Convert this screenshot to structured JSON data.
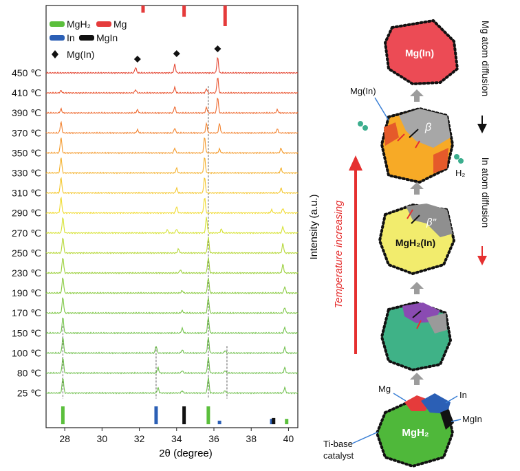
{
  "chart_data": {
    "type": "line",
    "xlabel": "2θ (degree)",
    "ylabel": "Intensity (a.u.)",
    "xlim": [
      27,
      40.5
    ],
    "x_ticks": [
      28,
      30,
      32,
      34,
      36,
      38,
      40
    ],
    "series": [
      {
        "name": "25 ℃",
        "color": "#6fbf4c",
        "peaks": [
          [
            27.9,
            1.0
          ],
          [
            33.0,
            0.35
          ],
          [
            34.3,
            0.15
          ],
          [
            35.7,
            1.0
          ],
          [
            36.6,
            0.15
          ],
          [
            39.8,
            0.35
          ]
        ]
      },
      {
        "name": "80 ℃",
        "color": "#6fbf4c",
        "peaks": [
          [
            27.9,
            1.0
          ],
          [
            33.0,
            0.35
          ],
          [
            34.3,
            0.15
          ],
          [
            35.7,
            1.0
          ],
          [
            36.6,
            0.15
          ],
          [
            39.8,
            0.35
          ]
        ]
      },
      {
        "name": "100 ℃",
        "color": "#6fbf4c",
        "peaks": [
          [
            27.9,
            1.0
          ],
          [
            32.9,
            0.45
          ],
          [
            34.3,
            0.2
          ],
          [
            35.7,
            1.0
          ],
          [
            36.6,
            0.15
          ],
          [
            39.8,
            0.35
          ]
        ]
      },
      {
        "name": "150 ℃",
        "color": "#72c24a",
        "peaks": [
          [
            27.9,
            1.0
          ],
          [
            34.3,
            0.3
          ],
          [
            35.7,
            1.0
          ],
          [
            39.8,
            0.35
          ]
        ]
      },
      {
        "name": "170 ℃",
        "color": "#7dc646",
        "peaks": [
          [
            27.9,
            1.0
          ],
          [
            34.3,
            0.15
          ],
          [
            35.7,
            1.0
          ],
          [
            39.8,
            0.35
          ]
        ]
      },
      {
        "name": "190 ℃",
        "color": "#8acb42",
        "peaks": [
          [
            27.9,
            1.0
          ],
          [
            34.3,
            0.15
          ],
          [
            35.7,
            1.0
          ],
          [
            39.8,
            0.4
          ]
        ]
      },
      {
        "name": "230 ℃",
        "color": "#9bd03c",
        "peaks": [
          [
            27.9,
            1.0
          ],
          [
            34.2,
            0.2
          ],
          [
            35.7,
            1.0
          ],
          [
            39.7,
            0.55
          ]
        ]
      },
      {
        "name": "250 ℃",
        "color": "#b6d838",
        "peaks": [
          [
            27.9,
            1.0
          ],
          [
            34.1,
            0.25
          ],
          [
            35.7,
            1.0
          ],
          [
            39.7,
            0.6
          ]
        ]
      },
      {
        "name": "270 ℃",
        "color": "#d6e233",
        "peaks": [
          [
            27.9,
            1.0
          ],
          [
            33.5,
            0.2
          ],
          [
            34.0,
            0.25
          ],
          [
            35.6,
            1.0
          ],
          [
            36.4,
            0.25
          ],
          [
            39.7,
            0.4
          ]
        ]
      },
      {
        "name": "290 ℃",
        "color": "#f0da2c",
        "peaks": [
          [
            27.8,
            1.0
          ],
          [
            34.0,
            0.4
          ],
          [
            35.5,
            1.0
          ],
          [
            39.1,
            0.2
          ],
          [
            39.7,
            0.3
          ]
        ]
      },
      {
        "name": "310 ℃",
        "color": "#f4c62a",
        "peaks": [
          [
            27.8,
            1.0
          ],
          [
            34.0,
            0.3
          ],
          [
            35.5,
            1.0
          ],
          [
            39.6,
            0.3
          ]
        ]
      },
      {
        "name": "330 ℃",
        "color": "#f4b02a",
        "peaks": [
          [
            27.8,
            1.0
          ],
          [
            34.0,
            0.3
          ],
          [
            35.5,
            1.0
          ],
          [
            39.6,
            0.3
          ]
        ]
      },
      {
        "name": "350 ℃",
        "color": "#f49a2c",
        "peaks": [
          [
            27.8,
            1.0
          ],
          [
            33.9,
            0.3
          ],
          [
            35.5,
            1.0
          ],
          [
            36.3,
            0.25
          ],
          [
            39.6,
            0.3
          ]
        ]
      },
      {
        "name": "370 ℃",
        "color": "#f2822e",
        "peaks": [
          [
            27.8,
            0.7
          ],
          [
            31.9,
            0.2
          ],
          [
            33.9,
            0.3
          ],
          [
            35.6,
            0.6
          ],
          [
            36.3,
            0.6
          ],
          [
            39.4,
            0.25
          ]
        ]
      },
      {
        "name": "390 ℃",
        "color": "#ee6a30",
        "peaks": [
          [
            27.8,
            0.25
          ],
          [
            31.9,
            0.2
          ],
          [
            33.9,
            0.4
          ],
          [
            35.6,
            0.35
          ],
          [
            36.2,
            1.0
          ],
          [
            39.4,
            0.2
          ]
        ]
      },
      {
        "name": "410 ℃",
        "color": "#e95632",
        "peaks": [
          [
            27.8,
            0.15
          ],
          [
            31.8,
            0.2
          ],
          [
            33.9,
            0.35
          ],
          [
            35.6,
            0.25
          ],
          [
            36.2,
            1.0
          ]
        ]
      },
      {
        "name": "450 ℃",
        "color": "#e44734",
        "peaks": [
          [
            31.8,
            0.35
          ],
          [
            33.9,
            0.55
          ],
          [
            36.2,
            1.0
          ]
        ]
      }
    ],
    "reference_bars": {
      "MgH2": {
        "color": "#5bbf3c",
        "positions": [
          27.9,
          35.7,
          39.9
        ],
        "heights": [
          1.0,
          1.0,
          0.3
        ]
      },
      "In": {
        "color": "#2b5fb5",
        "positions": [
          32.9,
          36.3,
          39.1
        ],
        "heights": [
          1.0,
          0.2,
          0.3
        ]
      },
      "MgIn": {
        "color": "#111111",
        "positions": [
          34.4,
          39.2
        ],
        "heights": [
          1.0,
          0.35
        ]
      },
      "Mg": {
        "color": "#e53b3b",
        "positions": [
          32.2,
          34.4,
          36.6
        ],
        "heights": [
          0.35,
          0.55,
          1.0
        ]
      }
    },
    "mgin_markers": [
      31.9,
      34.0,
      36.2
    ],
    "dashed_lines": [
      27.9,
      32.9,
      35.7,
      36.7
    ]
  },
  "legend": {
    "mgh2": "MgH₂",
    "mg": "Mg",
    "in": "In",
    "mgin": "MgIn",
    "mg_in_marker": "Mg(In)"
  },
  "schematic": {
    "temperature_label": "Temperature increasing",
    "mg_in_top": "Mg(In)",
    "mg_in_callout": "Mg(In)",
    "beta": "β",
    "beta_double_prime": "β\"",
    "mgh2_in": "MgH₂(In)",
    "h2": "H₂",
    "mg_label": "Mg",
    "in_label": "In",
    "mgin_label": "MgIn",
    "mgh2_bottom": "MgH₂",
    "catalyst_label_1": "Ti-base",
    "catalyst_label_2": "catalyst",
    "mg_diffusion": "Mg atom diffusion",
    "in_diffusion": "In atom diffusion"
  }
}
